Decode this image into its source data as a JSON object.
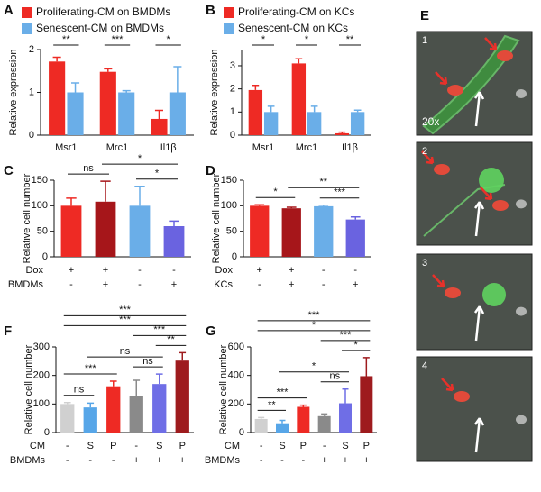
{
  "chart_data": [
    {
      "panel": "A",
      "type": "grouped-bar",
      "categories": [
        "Msr1",
        "Mrc1",
        "Il1β"
      ],
      "ylabel": "Relative expression",
      "ylim": [
        0,
        2
      ],
      "yticks": [
        0,
        1,
        2
      ],
      "series": [
        {
          "name": "Proliferating-CM on BMDMs",
          "color": "#ee2a24",
          "values": [
            1.72,
            1.48,
            0.38
          ],
          "errors": [
            0.1,
            0.07,
            0.2
          ]
        },
        {
          "name": "Senescent-CM on BMDMs",
          "color": "#6aaee8",
          "values": [
            1.0,
            1.0,
            1.0
          ],
          "errors": [
            0.22,
            0.04,
            0.6
          ]
        }
      ],
      "significance": [
        {
          "group": 0,
          "label": "**"
        },
        {
          "group": 1,
          "label": "***"
        },
        {
          "group": 2,
          "label": "*"
        }
      ]
    },
    {
      "panel": "B",
      "type": "grouped-bar",
      "categories": [
        "Msr1",
        "Mrc1",
        "Il1β"
      ],
      "ylabel": "Relative expression",
      "ylim": [
        0,
        3.7
      ],
      "yticks": [
        0,
        1,
        2,
        3
      ],
      "series": [
        {
          "name": "Proliferating-CM on KCs",
          "color": "#ee2a24",
          "values": [
            1.95,
            3.1,
            0.08
          ],
          "errors": [
            0.2,
            0.2,
            0.05
          ]
        },
        {
          "name": "Senescent-CM on KCs",
          "color": "#6aaee8",
          "values": [
            1.0,
            1.0,
            1.0
          ],
          "errors": [
            0.25,
            0.25,
            0.08
          ]
        }
      ],
      "significance": [
        {
          "group": 0,
          "label": "*"
        },
        {
          "group": 1,
          "label": "*"
        },
        {
          "group": 2,
          "label": "**"
        }
      ]
    },
    {
      "panel": "C",
      "type": "bar",
      "ylabel": "Relative cell number",
      "ylim": [
        0,
        150
      ],
      "yticks": [
        0,
        50,
        100,
        150
      ],
      "values": [
        100,
        108,
        100,
        60
      ],
      "errors": [
        15,
        40,
        38,
        10
      ],
      "colors": [
        "#ee2a24",
        "#a6161a",
        "#6aaee8",
        "#6a63e0"
      ],
      "rows": [
        {
          "name": "Dox",
          "values": [
            "+",
            "+",
            "-",
            "-"
          ]
        },
        {
          "name": "BMDMs",
          "values": [
            "-",
            "+",
            "-",
            "+"
          ]
        }
      ],
      "significance": [
        {
          "from": 0,
          "to": 1,
          "label": "ns"
        },
        {
          "from": 2,
          "to": 3,
          "label": "*"
        },
        {
          "from": 1,
          "to": 3,
          "label": "*"
        }
      ]
    },
    {
      "panel": "D",
      "type": "bar",
      "ylabel": "Relative cell number",
      "ylim": [
        0,
        150
      ],
      "yticks": [
        0,
        50,
        100,
        150
      ],
      "values": [
        100,
        95,
        99,
        73
      ],
      "errors": [
        2,
        2,
        2,
        5
      ],
      "colors": [
        "#ee2a24",
        "#a6161a",
        "#6aaee8",
        "#6a63e0"
      ],
      "rows": [
        {
          "name": "Dox",
          "values": [
            "+",
            "+",
            "-",
            "-"
          ]
        },
        {
          "name": "KCs",
          "values": [
            "-",
            "+",
            "-",
            "+"
          ]
        }
      ],
      "significance": [
        {
          "from": 0,
          "to": 1,
          "label": "*"
        },
        {
          "from": 2,
          "to": 3,
          "label": "***"
        },
        {
          "from": 1,
          "to": 3,
          "label": "**"
        }
      ]
    },
    {
      "panel": "F",
      "type": "bar",
      "ylabel": "Relative cell number",
      "ylim": [
        0,
        300
      ],
      "yticks": [
        0,
        100,
        200,
        300
      ],
      "values": [
        100,
        88,
        162,
        128,
        170,
        252
      ],
      "errors": [
        5,
        15,
        18,
        55,
        35,
        28
      ],
      "colors": [
        "#d0d0d0",
        "#57a6e8",
        "#ee2a24",
        "#8a8a8a",
        "#6f6ee6",
        "#9e1b1e"
      ],
      "rows": [
        {
          "name": "CM",
          "values": [
            "-",
            "S",
            "P",
            "-",
            "S",
            "P"
          ]
        },
        {
          "name": "BMDMs",
          "values": [
            "-",
            "-",
            "-",
            "+",
            "+",
            "+"
          ]
        }
      ],
      "significance": [
        {
          "from": 0,
          "to": 1,
          "label": "ns"
        },
        {
          "from": 3,
          "to": 4,
          "label": "ns"
        },
        {
          "from": 0,
          "to": 2,
          "label": "***"
        },
        {
          "from": 1,
          "to": 4,
          "label": "ns"
        },
        {
          "from": 4,
          "to": 5,
          "label": "**"
        },
        {
          "from": 3,
          "to": 5,
          "label": "***"
        },
        {
          "from": 0,
          "to": 5,
          "label": "***"
        },
        {
          "from": 0,
          "to": 5,
          "label": "***"
        }
      ]
    },
    {
      "panel": "G",
      "type": "bar",
      "ylabel": "Relative cell number",
      "ylim": [
        0,
        600
      ],
      "yticks": [
        0,
        200,
        400,
        600
      ],
      "values": [
        95,
        65,
        180,
        115,
        205,
        395
      ],
      "errors": [
        10,
        20,
        12,
        15,
        100,
        130
      ],
      "colors": [
        "#d0d0d0",
        "#57a6e8",
        "#ee2a24",
        "#8a8a8a",
        "#6f6ee6",
        "#9e1b1e"
      ],
      "rows": [
        {
          "name": "CM",
          "values": [
            "-",
            "S",
            "P",
            "-",
            "S",
            "P"
          ]
        },
        {
          "name": "BMDMs",
          "values": [
            "-",
            "-",
            "-",
            "+",
            "+",
            "+"
          ]
        }
      ],
      "significance": [
        {
          "from": 0,
          "to": 1,
          "label": "**"
        },
        {
          "from": 0,
          "to": 2,
          "label": "***"
        },
        {
          "from": 3,
          "to": 4,
          "label": "ns"
        },
        {
          "from": 1,
          "to": 4,
          "label": "*"
        },
        {
          "from": 4,
          "to": 5,
          "label": "*"
        },
        {
          "from": 3,
          "to": 5,
          "label": "***"
        },
        {
          "from": 0,
          "to": 5,
          "label": "*"
        },
        {
          "from": 0,
          "to": 5,
          "label": "***"
        }
      ]
    }
  ],
  "panel_e": {
    "panel": "E",
    "images": [
      {
        "label": "1",
        "magnification": "20x"
      },
      {
        "label": "2"
      },
      {
        "label": "3"
      },
      {
        "label": "4"
      }
    ]
  }
}
